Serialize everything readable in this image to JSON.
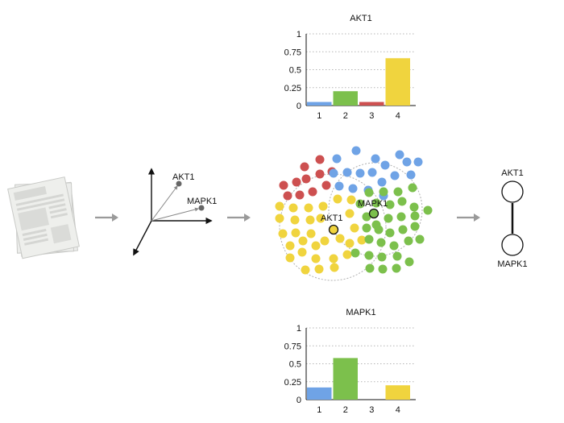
{
  "colors": {
    "blue": "#6fa3e6",
    "green": "#7cc04c",
    "red": "#cd5050",
    "yellow": "#f0d43e",
    "arrow": "#9a9a9a",
    "axis": "#111111",
    "vector_point": "#666666",
    "grid": "#b5b5b5",
    "doc": "#ecedeb"
  },
  "pipeline": {
    "documents_icon": "stacked-documents-icon",
    "step_arrows": [
      "right-arrow-icon",
      "right-arrow-icon",
      "right-arrow-icon"
    ]
  },
  "embedding": {
    "points": [
      {
        "label": "AKT1"
      },
      {
        "label": "MAPK1"
      }
    ]
  },
  "clusters": {
    "akt1_label": "AKT1",
    "mapk1_label": "MAPK1"
  },
  "graph": {
    "nodes": [
      "AKT1",
      "MAPK1"
    ]
  },
  "chart_data": [
    {
      "type": "bar",
      "title": "AKT1",
      "categories": [
        "1",
        "2",
        "3",
        "4"
      ],
      "values": [
        0.05,
        0.2,
        0.05,
        0.66
      ],
      "bar_colors": [
        "#6fa3e6",
        "#7cc04c",
        "#cd5050",
        "#f0d43e"
      ],
      "ylim": [
        0,
        1
      ],
      "yticks": [
        "0",
        "0.25",
        "0.5",
        "0.75",
        "1"
      ],
      "grid": true
    },
    {
      "type": "bar",
      "title": "MAPK1",
      "categories": [
        "1",
        "2",
        "3",
        "4"
      ],
      "values": [
        0.17,
        0.58,
        0,
        0.2
      ],
      "bar_colors": [
        "#6fa3e6",
        "#7cc04c",
        "#cd5050",
        "#f0d43e"
      ],
      "ylim": [
        0,
        1
      ],
      "yticks": [
        "0",
        "0.25",
        "0.5",
        "0.75",
        "1"
      ],
      "grid": true
    }
  ]
}
